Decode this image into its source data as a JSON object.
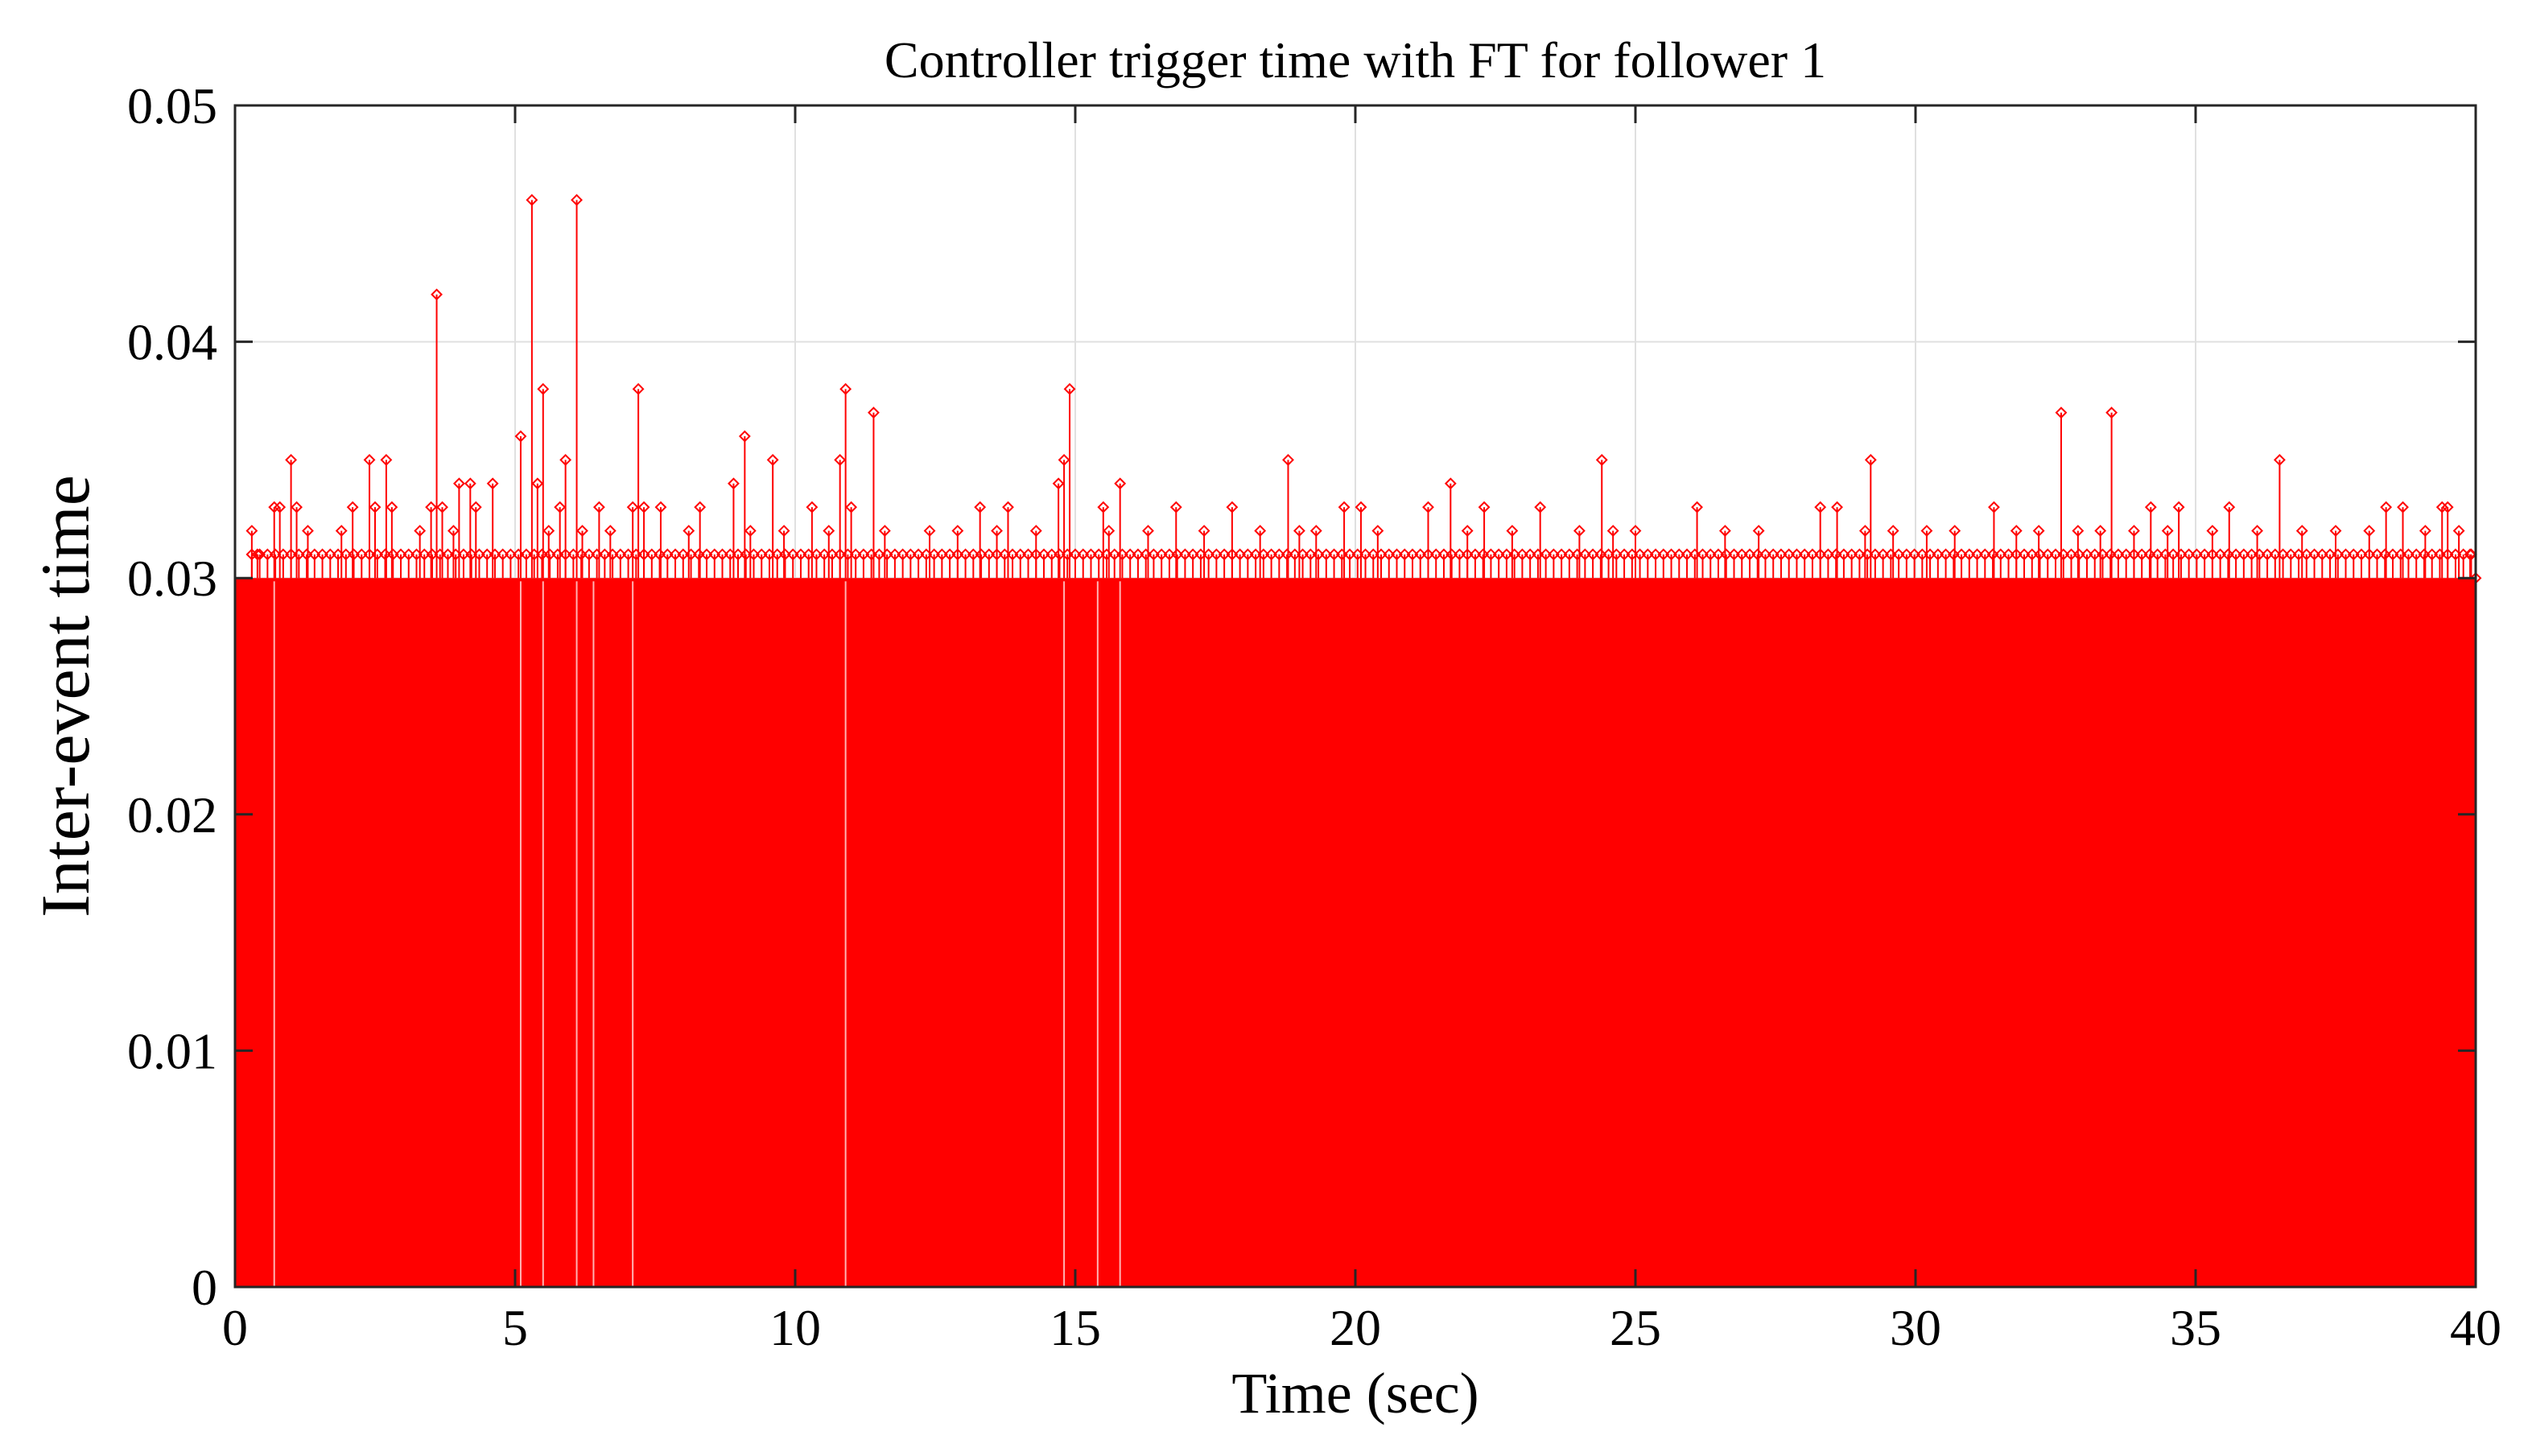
{
  "chart_data": {
    "type": "stem",
    "title": "Controller trigger time with FT for follower 1",
    "xlabel": "Time (sec)",
    "ylabel": "Inter-event time",
    "xlim": [
      0,
      40
    ],
    "ylim": [
      0,
      0.05
    ],
    "x_ticks": [
      0,
      5,
      10,
      15,
      20,
      25,
      30,
      35,
      40
    ],
    "x_tick_labels": [
      "0",
      "5",
      "10",
      "15",
      "20",
      "25",
      "30",
      "35",
      "40"
    ],
    "y_ticks": [
      0,
      0.01,
      0.02,
      0.03,
      0.04,
      0.05
    ],
    "y_tick_labels": [
      "0",
      "0.01",
      "0.02",
      "0.03",
      "0.04",
      "0.05"
    ],
    "grid": true,
    "legend": "none",
    "series_color": "#ff0000",
    "marker": "diamond",
    "baseline_interval": 0.03,
    "notable_points": [
      {
        "x": 0.3,
        "y": 0.032
      },
      {
        "x": 0.4,
        "y": 0.031
      },
      {
        "x": 0.7,
        "y": 0.033
      },
      {
        "x": 0.8,
        "y": 0.033
      },
      {
        "x": 1.0,
        "y": 0.035
      },
      {
        "x": 1.1,
        "y": 0.033
      },
      {
        "x": 1.3,
        "y": 0.032
      },
      {
        "x": 1.9,
        "y": 0.032
      },
      {
        "x": 2.1,
        "y": 0.033
      },
      {
        "x": 2.4,
        "y": 0.035
      },
      {
        "x": 2.5,
        "y": 0.033
      },
      {
        "x": 2.7,
        "y": 0.035
      },
      {
        "x": 2.8,
        "y": 0.033
      },
      {
        "x": 3.3,
        "y": 0.032
      },
      {
        "x": 3.5,
        "y": 0.033
      },
      {
        "x": 3.6,
        "y": 0.042
      },
      {
        "x": 3.7,
        "y": 0.033
      },
      {
        "x": 3.9,
        "y": 0.032
      },
      {
        "x": 4.0,
        "y": 0.034
      },
      {
        "x": 4.2,
        "y": 0.034
      },
      {
        "x": 4.3,
        "y": 0.033
      },
      {
        "x": 4.6,
        "y": 0.034
      },
      {
        "x": 5.1,
        "y": 0.036
      },
      {
        "x": 5.3,
        "y": 0.046
      },
      {
        "x": 5.4,
        "y": 0.034
      },
      {
        "x": 5.5,
        "y": 0.038
      },
      {
        "x": 5.6,
        "y": 0.032
      },
      {
        "x": 5.8,
        "y": 0.033
      },
      {
        "x": 5.9,
        "y": 0.035
      },
      {
        "x": 6.1,
        "y": 0.046
      },
      {
        "x": 6.2,
        "y": 0.032
      },
      {
        "x": 6.5,
        "y": 0.033
      },
      {
        "x": 6.7,
        "y": 0.032
      },
      {
        "x": 7.1,
        "y": 0.033
      },
      {
        "x": 7.2,
        "y": 0.038
      },
      {
        "x": 7.3,
        "y": 0.033
      },
      {
        "x": 7.6,
        "y": 0.033
      },
      {
        "x": 8.1,
        "y": 0.032
      },
      {
        "x": 8.3,
        "y": 0.033
      },
      {
        "x": 8.9,
        "y": 0.034
      },
      {
        "x": 9.1,
        "y": 0.036
      },
      {
        "x": 9.2,
        "y": 0.032
      },
      {
        "x": 9.6,
        "y": 0.035
      },
      {
        "x": 9.8,
        "y": 0.032
      },
      {
        "x": 10.3,
        "y": 0.033
      },
      {
        "x": 10.6,
        "y": 0.032
      },
      {
        "x": 10.8,
        "y": 0.035
      },
      {
        "x": 10.9,
        "y": 0.038
      },
      {
        "x": 11.0,
        "y": 0.033
      },
      {
        "x": 11.4,
        "y": 0.037
      },
      {
        "x": 11.6,
        "y": 0.032
      },
      {
        "x": 12.4,
        "y": 0.032
      },
      {
        "x": 12.9,
        "y": 0.032
      },
      {
        "x": 13.3,
        "y": 0.033
      },
      {
        "x": 13.6,
        "y": 0.032
      },
      {
        "x": 13.8,
        "y": 0.033
      },
      {
        "x": 14.3,
        "y": 0.032
      },
      {
        "x": 14.7,
        "y": 0.034
      },
      {
        "x": 14.8,
        "y": 0.035
      },
      {
        "x": 14.9,
        "y": 0.038
      },
      {
        "x": 15.5,
        "y": 0.033
      },
      {
        "x": 15.6,
        "y": 0.032
      },
      {
        "x": 15.8,
        "y": 0.034
      },
      {
        "x": 16.3,
        "y": 0.032
      },
      {
        "x": 16.8,
        "y": 0.033
      },
      {
        "x": 17.3,
        "y": 0.032
      },
      {
        "x": 17.8,
        "y": 0.033
      },
      {
        "x": 18.3,
        "y": 0.032
      },
      {
        "x": 18.8,
        "y": 0.035
      },
      {
        "x": 19.0,
        "y": 0.032
      },
      {
        "x": 19.3,
        "y": 0.032
      },
      {
        "x": 19.8,
        "y": 0.033
      },
      {
        "x": 20.1,
        "y": 0.033
      },
      {
        "x": 20.4,
        "y": 0.032
      },
      {
        "x": 21.3,
        "y": 0.033
      },
      {
        "x": 21.7,
        "y": 0.034
      },
      {
        "x": 22.0,
        "y": 0.032
      },
      {
        "x": 22.3,
        "y": 0.033
      },
      {
        "x": 22.8,
        "y": 0.032
      },
      {
        "x": 23.3,
        "y": 0.033
      },
      {
        "x": 24.0,
        "y": 0.032
      },
      {
        "x": 24.4,
        "y": 0.035
      },
      {
        "x": 24.6,
        "y": 0.032
      },
      {
        "x": 25.0,
        "y": 0.032
      },
      {
        "x": 26.1,
        "y": 0.033
      },
      {
        "x": 26.6,
        "y": 0.032
      },
      {
        "x": 27.2,
        "y": 0.032
      },
      {
        "x": 28.3,
        "y": 0.033
      },
      {
        "x": 28.6,
        "y": 0.033
      },
      {
        "x": 29.1,
        "y": 0.032
      },
      {
        "x": 29.2,
        "y": 0.035
      },
      {
        "x": 29.6,
        "y": 0.032
      },
      {
        "x": 30.2,
        "y": 0.032
      },
      {
        "x": 30.7,
        "y": 0.032
      },
      {
        "x": 31.4,
        "y": 0.033
      },
      {
        "x": 31.8,
        "y": 0.032
      },
      {
        "x": 32.2,
        "y": 0.032
      },
      {
        "x": 32.6,
        "y": 0.037
      },
      {
        "x": 32.9,
        "y": 0.032
      },
      {
        "x": 33.3,
        "y": 0.032
      },
      {
        "x": 33.5,
        "y": 0.037
      },
      {
        "x": 33.9,
        "y": 0.032
      },
      {
        "x": 34.2,
        "y": 0.033
      },
      {
        "x": 34.5,
        "y": 0.032
      },
      {
        "x": 34.7,
        "y": 0.033
      },
      {
        "x": 35.3,
        "y": 0.032
      },
      {
        "x": 35.6,
        "y": 0.033
      },
      {
        "x": 36.1,
        "y": 0.032
      },
      {
        "x": 36.5,
        "y": 0.035
      },
      {
        "x": 36.9,
        "y": 0.032
      },
      {
        "x": 37.5,
        "y": 0.032
      },
      {
        "x": 38.1,
        "y": 0.032
      },
      {
        "x": 38.4,
        "y": 0.033
      },
      {
        "x": 38.7,
        "y": 0.033
      },
      {
        "x": 39.1,
        "y": 0.032
      },
      {
        "x": 39.4,
        "y": 0.033
      },
      {
        "x": 39.5,
        "y": 0.033
      },
      {
        "x": 39.7,
        "y": 0.032
      },
      {
        "x": 39.9,
        "y": 0.031
      },
      {
        "x": 40.0,
        "y": 0.03
      }
    ]
  }
}
